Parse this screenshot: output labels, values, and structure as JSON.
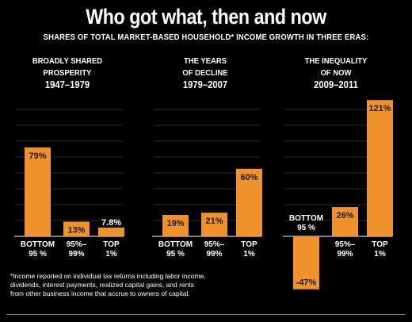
{
  "title": "Who got what, then and now",
  "subtitle": "SHARES OF TOTAL MARKET-BASED HOUSEHOLD* INCOME GROWTH IN THREE ERAS:",
  "eras": [
    {
      "line1": "BROADLY SHARED",
      "line2": "PROSPERITY",
      "years": "1947–1979"
    },
    {
      "line1": "THE YEARS",
      "line2": "OF DECLINE",
      "years": "1979–2007"
    },
    {
      "line1": "THE INEQUALITY",
      "line2": "OF NOW",
      "years": "2009–2011"
    }
  ],
  "footnote": "*Income reported on individual tax returns including labor income, dividends, interest payments, realized capital gains, and rents from other business income that accrue to owners of capital.",
  "chart_data": {
    "type": "bar",
    "unit": "%",
    "categories": [
      "BOTTOM 95 %",
      "95%– 99%",
      "TOP 1%"
    ],
    "panels": [
      {
        "era": "1947–1979",
        "values": [
          79,
          13,
          7.8
        ],
        "labels": [
          "79%",
          "13%",
          "7.8%"
        ]
      },
      {
        "era": "1979–2007",
        "values": [
          19,
          21,
          60
        ],
        "labels": [
          "19%",
          "21%",
          "60%"
        ]
      },
      {
        "era": "2009–2011",
        "values": [
          -47,
          26,
          121
        ],
        "labels": [
          "-47%",
          "26%",
          "121%"
        ]
      }
    ],
    "legend": "none",
    "grid": false,
    "colors": {
      "bar": "#f0922b",
      "background": "#000000"
    }
  }
}
